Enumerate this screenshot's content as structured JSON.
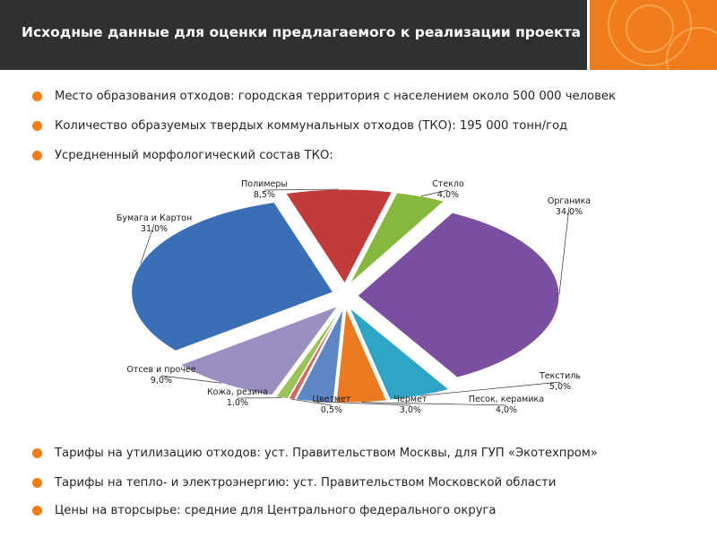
{
  "header": {
    "title": "Исходные данные для оценки предлагаемого к реализации проекта",
    "accent_color": "#f07c1b"
  },
  "bullets_top": [
    "Место образования отходов: городская территория с населением около 500 000 человек",
    "Количество образуемых твердых коммунальных отходов (ТКО): 195 000 тонн/год",
    "Усредненный морфологический состав ТКО:"
  ],
  "bullets_bottom": [
    "Тарифы на утилизацию отходов: уст. Правительством Москвы, для ГУП «Экотехпром»",
    "Тарифы на тепло- и электроэнергию:  уст. Правительством Московской области",
    "Цены на вторсырье: средние для Центрального федерального округа"
  ],
  "chart_data": {
    "type": "pie",
    "title": "",
    "slices": [
      {
        "name": "Органика",
        "label": "34,0%",
        "value": 34.0,
        "color": "#7b4fa0"
      },
      {
        "name": "Текстиль",
        "label": "5,0%",
        "value": 5.0,
        "color": "#2fa4c4"
      },
      {
        "name": "Песок, керамика",
        "label": "4,0%",
        "value": 4.0,
        "color": "#ec7a22"
      },
      {
        "name": "Чермет",
        "label": "3,0%",
        "value": 3.0,
        "color": "#5d86c7"
      },
      {
        "name": "Цветмет",
        "label": "0,5%",
        "value": 0.5,
        "color": "#d66565"
      },
      {
        "name": "Кожа, резина",
        "label": "1,0%",
        "value": 1.0,
        "color": "#9cc25a"
      },
      {
        "name": "Отсев и прочее",
        "label": "9,0%",
        "value": 9.0,
        "color": "#9b8ec0"
      },
      {
        "name": "Бумага и Картон",
        "label": "31,0%",
        "value": 31.0,
        "color": "#3b6fb5"
      },
      {
        "name": "Полимеры",
        "label": "8,5%",
        "value": 8.5,
        "color": "#c23b3b"
      },
      {
        "name": "Стекло",
        "label": "4,0%",
        "value": 4.0,
        "color": "#86b83e"
      }
    ]
  }
}
